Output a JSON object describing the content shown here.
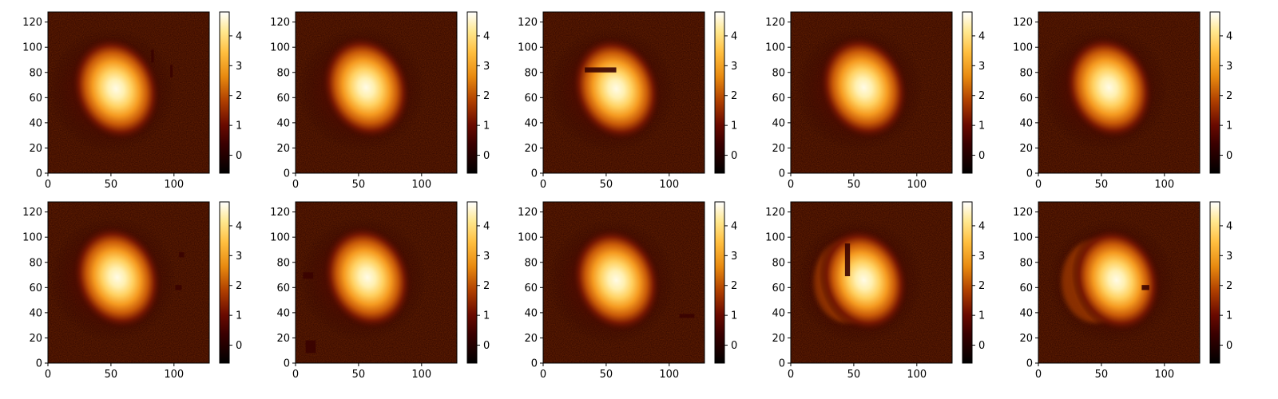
{
  "chart_data": {
    "type": "heatmap",
    "colormap": "afmhot",
    "grid": false,
    "xlim": [
      0,
      128
    ],
    "ylim": [
      0,
      128
    ],
    "x_ticks": [
      "0",
      "50",
      "100"
    ],
    "y_ticks": [
      "0",
      "20",
      "40",
      "60",
      "80",
      "100",
      "120"
    ],
    "colorbar_range": [
      -0.6,
      4.8
    ],
    "colorbar_ticks": [
      "0",
      "1",
      "2",
      "3",
      "4"
    ],
    "panels": [
      {
        "row": 1,
        "col": 1,
        "blob_center": [
          54,
          67
        ],
        "dark_patches": [
          {
            "x": [
              82,
              84
            ],
            "y": [
              88,
              98
            ]
          },
          {
            "x": [
              97,
              99
            ],
            "y": [
              76,
              86
            ]
          }
        ],
        "faint_region": null
      },
      {
        "row": 1,
        "col": 2,
        "blob_center": [
          56,
          68
        ],
        "dark_patches": [],
        "faint_region": null
      },
      {
        "row": 1,
        "col": 3,
        "blob_center": [
          58,
          67
        ],
        "dark_patches": [
          {
            "x": [
              33,
              58
            ],
            "y": [
              80,
              84
            ]
          }
        ],
        "faint_region": null
      },
      {
        "row": 1,
        "col": 4,
        "blob_center": [
          58,
          68
        ],
        "dark_patches": [],
        "faint_region": null
      },
      {
        "row": 1,
        "col": 5,
        "blob_center": [
          56,
          68
        ],
        "dark_patches": [],
        "faint_region": null
      },
      {
        "row": 2,
        "col": 1,
        "blob_center": [
          55,
          68
        ],
        "dark_patches": [
          {
            "x": [
              104,
              108
            ],
            "y": [
              84,
              88
            ]
          },
          {
            "x": [
              101,
              106
            ],
            "y": [
              58,
              62
            ]
          }
        ],
        "faint_region": null
      },
      {
        "row": 2,
        "col": 2,
        "blob_center": [
          57,
          68
        ],
        "dark_patches": [
          {
            "x": [
              6,
              14
            ],
            "y": [
              67,
              72
            ]
          },
          {
            "x": [
              8,
              16
            ],
            "y": [
              8,
              18
            ]
          }
        ],
        "faint_region": null
      },
      {
        "row": 2,
        "col": 3,
        "blob_center": [
          58,
          66
        ],
        "dark_patches": [
          {
            "x": [
              108,
              120
            ],
            "y": [
              36,
              39
            ]
          }
        ],
        "faint_region": null
      },
      {
        "row": 2,
        "col": 4,
        "blob_center": [
          58,
          66
        ],
        "dark_patches": [
          {
            "x": [
              43,
              47
            ],
            "y": [
              69,
              95
            ]
          }
        ],
        "faint_region": [
          45,
          65
        ]
      },
      {
        "row": 2,
        "col": 5,
        "blob_center": [
          62,
          66
        ],
        "dark_patches": [
          {
            "x": [
              82,
              88
            ],
            "y": [
              58,
              62
            ]
          }
        ],
        "faint_region": [
          45,
          65
        ]
      }
    ]
  }
}
